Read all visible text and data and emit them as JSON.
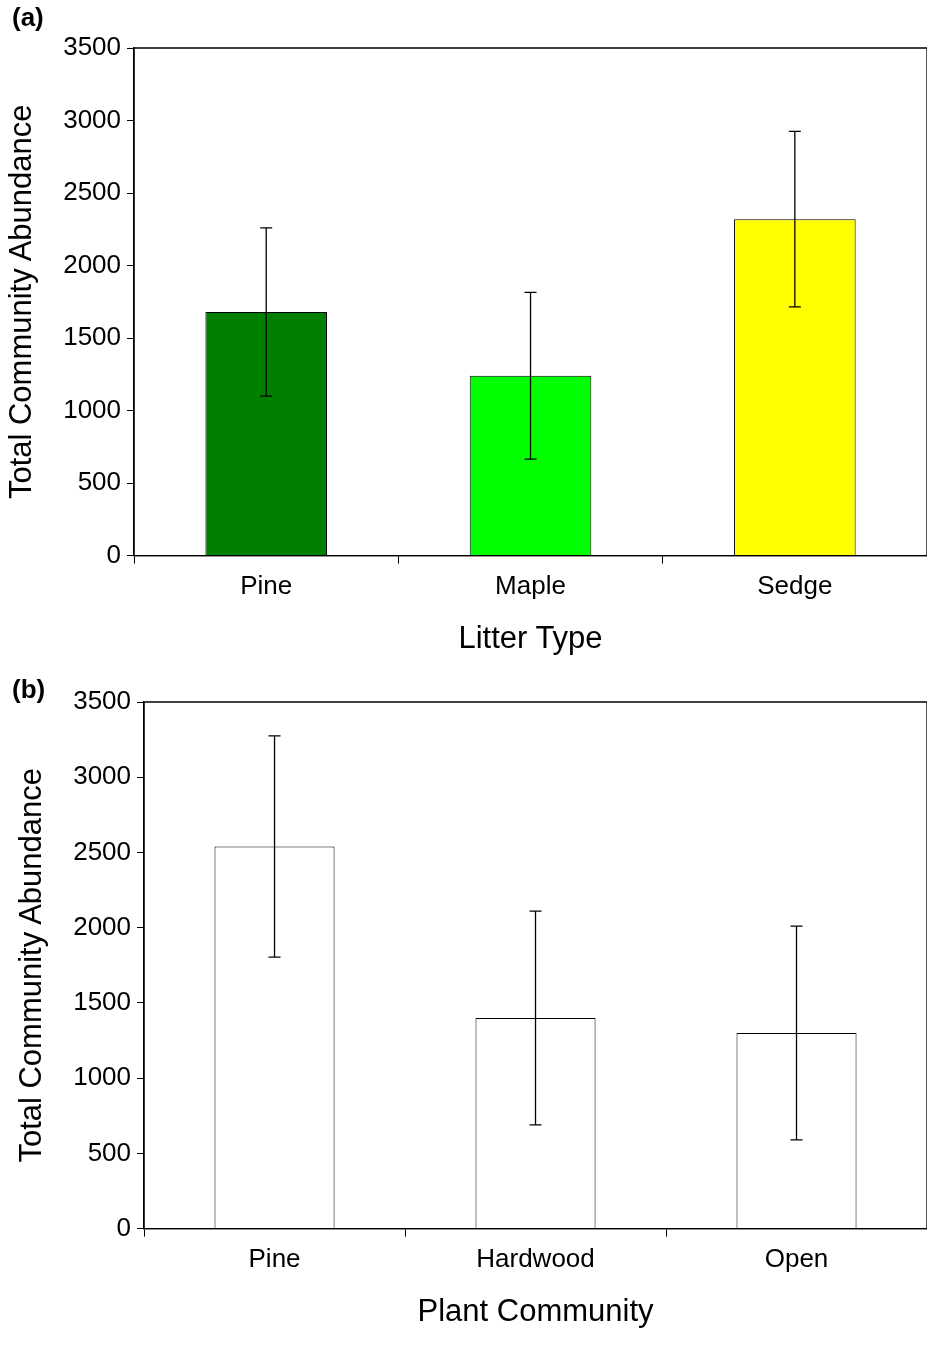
{
  "chart_data": [
    {
      "type": "bar",
      "xlabel": "Litter Type",
      "ylabel": "Total Community Abundance",
      "annotations": [
        "(a)"
      ],
      "categories": [
        "Pine",
        "Maple",
        "Sedge"
      ],
      "values": [
        1680,
        1240,
        2320
      ],
      "errors": [
        580,
        575,
        605
      ],
      "colors": [
        "#008000",
        "#00ff00",
        "#ffff00"
      ],
      "ylim": [
        0,
        3500
      ],
      "yticks": [
        0,
        500,
        1000,
        1500,
        2000,
        2500,
        3000,
        3500
      ],
      "grid": false,
      "legend": false
    },
    {
      "type": "bar",
      "xlabel": "Plant Community",
      "ylabel": "Total Community Abundance",
      "annotations": [
        "(b)"
      ],
      "categories": [
        "Pine",
        "Hardwood",
        "Open"
      ],
      "values": [
        2540,
        1400,
        1300
      ],
      "errors": [
        735,
        710,
        710
      ],
      "colors": [
        "#ffffff",
        "#ffffff",
        "#ffffff"
      ],
      "ylim": [
        0,
        3500
      ],
      "yticks": [
        0,
        500,
        1000,
        1500,
        2000,
        2500,
        3000,
        3500
      ],
      "grid": false,
      "legend": false
    }
  ]
}
